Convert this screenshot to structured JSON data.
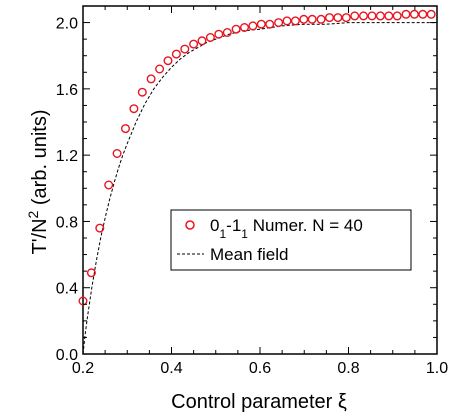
{
  "chart_data": {
    "type": "scatter",
    "xlabel": "Control parameter ξ",
    "ylabel_main": "T'/N",
    "ylabel_sup": "2",
    "ylabel_rest": " (arb. units)",
    "xlim": [
      0.2,
      1.0
    ],
    "ylim": [
      0.0,
      2.1
    ],
    "x_ticks": [
      0.2,
      0.4,
      0.6,
      0.8,
      1.0
    ],
    "x_tick_labels": [
      "0.2",
      "0.4",
      "0.6",
      "0.8",
      "1.0"
    ],
    "y_ticks": [
      0.0,
      0.4,
      0.8,
      1.2,
      1.6,
      2.0
    ],
    "y_tick_labels": [
      "0.0",
      "0.4",
      "0.8",
      "1.2",
      "1.6",
      "2.0"
    ],
    "grid": false,
    "legend_position": "center-right",
    "colors": {
      "markers": "#e8141e",
      "mean_field": "#000000"
    },
    "series": [
      {
        "name_base": "0",
        "name_sub1": "1",
        "name_mid": "-1",
        "name_sub2": "1",
        "name_rest": " Numer. N = 40",
        "style": "open-circle",
        "x": [
          0.2,
          0.219,
          0.238,
          0.258,
          0.277,
          0.296,
          0.315,
          0.334,
          0.354,
          0.373,
          0.392,
          0.411,
          0.43,
          0.45,
          0.469,
          0.488,
          0.507,
          0.526,
          0.546,
          0.565,
          0.584,
          0.603,
          0.622,
          0.642,
          0.661,
          0.68,
          0.699,
          0.718,
          0.738,
          0.757,
          0.776,
          0.795,
          0.814,
          0.834,
          0.853,
          0.872,
          0.891,
          0.91,
          0.93,
          0.949,
          0.968,
          0.987
        ],
        "y": [
          0.32,
          0.49,
          0.76,
          1.02,
          1.21,
          1.36,
          1.48,
          1.58,
          1.66,
          1.72,
          1.77,
          1.81,
          1.84,
          1.87,
          1.89,
          1.91,
          1.93,
          1.94,
          1.96,
          1.97,
          1.98,
          1.99,
          1.99,
          2.0,
          2.01,
          2.01,
          2.02,
          2.02,
          2.02,
          2.03,
          2.03,
          2.03,
          2.04,
          2.04,
          2.04,
          2.04,
          2.04,
          2.04,
          2.05,
          2.05,
          2.05,
          2.05
        ]
      },
      {
        "name": "Mean field",
        "style": "dashed-line",
        "x": [
          0.2,
          0.205,
          0.21,
          0.22,
          0.23,
          0.24,
          0.25,
          0.26,
          0.27,
          0.28,
          0.29,
          0.3,
          0.32,
          0.34,
          0.36,
          0.38,
          0.4,
          0.42,
          0.44,
          0.46,
          0.48,
          0.5,
          0.53,
          0.56,
          0.6,
          0.65,
          0.7,
          0.75,
          0.8,
          0.85,
          0.9,
          0.95,
          1.0
        ],
        "y": [
          0.0,
          0.12,
          0.22,
          0.4,
          0.56,
          0.7,
          0.82,
          0.93,
          1.03,
          1.12,
          1.2,
          1.27,
          1.4,
          1.51,
          1.6,
          1.67,
          1.73,
          1.78,
          1.82,
          1.85,
          1.88,
          1.9,
          1.93,
          1.95,
          1.96,
          1.98,
          1.99,
          1.99,
          2.0,
          2.0,
          2.0,
          2.0,
          2.0
        ]
      }
    ]
  }
}
